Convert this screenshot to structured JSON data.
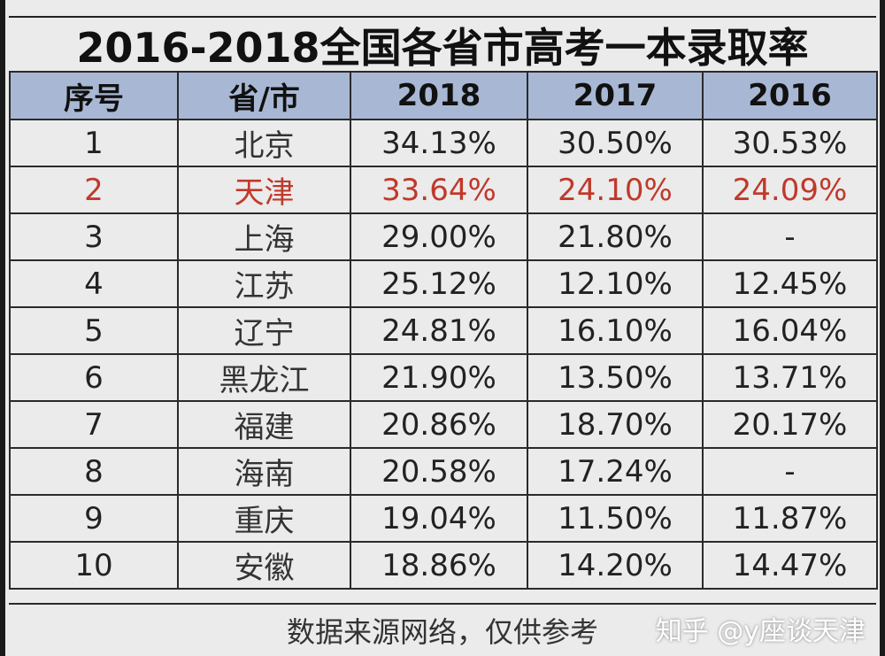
{
  "colors": {
    "header_bg": "#a8b8d4",
    "highlight": "#c0392b",
    "text": "#222222"
  },
  "chart_data": {
    "type": "table",
    "title": "2016-2018全国各省市高考一本录取率",
    "columns": [
      "序号",
      "省/市",
      "2018",
      "2017",
      "2016"
    ],
    "rows": [
      [
        "1",
        "北京",
        "34.13%",
        "30.50%",
        "30.53%"
      ],
      [
        "2",
        "天津",
        "33.64%",
        "24.10%",
        "24.09%"
      ],
      [
        "3",
        "上海",
        "29.00%",
        "21.80%",
        "-"
      ],
      [
        "4",
        "江苏",
        "25.12%",
        "12.10%",
        "12.45%"
      ],
      [
        "5",
        "辽宁",
        "24.81%",
        "16.10%",
        "16.04%"
      ],
      [
        "6",
        "黑龙江",
        "21.90%",
        "13.50%",
        "13.71%"
      ],
      [
        "7",
        "福建",
        "20.86%",
        "18.70%",
        "20.17%"
      ],
      [
        "8",
        "海南",
        "20.58%",
        "17.24%",
        "-"
      ],
      [
        "9",
        "重庆",
        "19.04%",
        "11.50%",
        "11.87%"
      ],
      [
        "10",
        "安徽",
        "18.86%",
        "14.20%",
        "14.47%"
      ]
    ],
    "highlight_row": 1
  },
  "footer": {
    "note": "数据来源网络，仅供参考"
  },
  "watermark": "知乎 @y座谈天津"
}
